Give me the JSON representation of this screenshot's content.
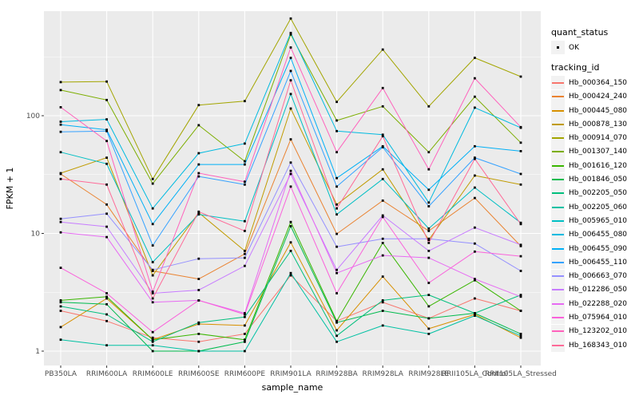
{
  "style": {
    "panel_bg": "#EBEBEB",
    "grid_color": "#FFFFFF",
    "tick_label_color": "#4D4D4D",
    "tick_mark_color": "#333333",
    "point_color": "#000000",
    "legend_key_bg": "#F2F2F2"
  },
  "chart_data": {
    "type": "line",
    "title": "",
    "xlabel": "sample_name",
    "ylabel": "FPKM + 1",
    "yscale": "log10",
    "ylim": [
      1,
      760
    ],
    "yticks": [
      1,
      10,
      100
    ],
    "ytick_labels": [
      "1",
      "10",
      "100"
    ],
    "yminor": [
      3.1623,
      31.623,
      316.23
    ],
    "grid": "major+minor, white on grey panel",
    "legend_position": "right",
    "categories": [
      "PB350LA",
      "RRIM600LA",
      "RRIM600LE",
      "RRIM600SE",
      "RRIM600PE",
      "RRIM901LA",
      "RRIM928BA",
      "RRIM928LA",
      "RRIM928LE",
      "RRII105LA_Control",
      "RRII105LA_Stressed"
    ],
    "legend": {
      "quant_status_title": "quant_status",
      "quant_status_items": [
        {
          "label": "OK",
          "symbol": "black-point"
        }
      ],
      "tracking_id_title": "tracking_id"
    },
    "series": [
      {
        "name": "Hb_000364_150",
        "color": "#F8766D",
        "values": [
          2.2,
          1.8,
          1.3,
          1.2,
          1.4,
          4.4,
          1.8,
          2.6,
          1.9,
          2.8,
          2.2
        ]
      },
      {
        "name": "Hb_000424_240",
        "color": "#EA8331",
        "values": [
          32,
          17.6,
          4.8,
          4.1,
          6.7,
          63,
          9.9,
          19,
          10.5,
          20,
          7.8
        ]
      },
      {
        "name": "Hb_000445_080",
        "color": "#D89000",
        "values": [
          1.6,
          2.8,
          1.25,
          1.7,
          1.65,
          8.4,
          1.5,
          4.3,
          1.55,
          2.05,
          1.3
        ]
      },
      {
        "name": "Hb_000878_130",
        "color": "#C09B00",
        "values": [
          32.5,
          44,
          4.4,
          15,
          7.1,
          115,
          17.6,
          35,
          8.8,
          31,
          26
        ]
      },
      {
        "name": "Hb_000914_070",
        "color": "#A3A500",
        "values": [
          193,
          195,
          29,
          123,
          133,
          670,
          131,
          365,
          120,
          310,
          215
        ]
      },
      {
        "name": "Hb_001307_140",
        "color": "#7CAE00",
        "values": [
          165,
          136,
          26.5,
          83,
          41,
          490,
          91,
          120,
          49,
          145,
          59
        ]
      },
      {
        "name": "Hb_001616_120",
        "color": "#39B600",
        "values": [
          2.7,
          2.9,
          1.25,
          1.4,
          1.25,
          12.5,
          1.8,
          8.3,
          2.4,
          4.0,
          2.2
        ]
      },
      {
        "name": "Hb_001846_050",
        "color": "#00BB4E",
        "values": [
          2.6,
          2.5,
          1.0,
          1.0,
          1.2,
          11.5,
          1.75,
          2.2,
          1.9,
          2.1,
          1.4
        ]
      },
      {
        "name": "Hb_002205_050",
        "color": "#00BF7D",
        "values": [
          2.4,
          2.05,
          1.2,
          1.75,
          1.95,
          7.1,
          1.35,
          2.7,
          3.0,
          2.1,
          3.0
        ]
      },
      {
        "name": "Hb_002205_060",
        "color": "#00C1A3",
        "values": [
          1.25,
          1.12,
          1.12,
          1.0,
          1.0,
          4.6,
          1.2,
          1.65,
          1.4,
          2.0,
          1.35
        ]
      },
      {
        "name": "Hb_005965_010",
        "color": "#00BFC4",
        "values": [
          49,
          39,
          5.7,
          14.5,
          12.7,
          153,
          14.5,
          29,
          11,
          24.5,
          12.3
        ]
      },
      {
        "name": "Hb_006455_080",
        "color": "#00BAE0",
        "values": [
          89,
          93,
          16.3,
          48,
          58,
          505,
          74,
          69,
          18.3,
          117,
          79
        ]
      },
      {
        "name": "Hb_006455_090",
        "color": "#00B0F6",
        "values": [
          84,
          76,
          12,
          38.5,
          38.5,
          310,
          29.5,
          55,
          23.5,
          55,
          50
        ]
      },
      {
        "name": "Hb_006455_110",
        "color": "#35A2FF",
        "values": [
          73,
          74,
          7.9,
          30.5,
          26,
          240,
          25,
          54,
          17,
          44,
          32
        ]
      },
      {
        "name": "Hb_006663_070",
        "color": "#9590FF",
        "values": [
          13.3,
          14.7,
          4.9,
          6.1,
          6.2,
          40,
          7.7,
          9.0,
          9.0,
          8.2,
          4.8
        ]
      },
      {
        "name": "Hb_012286_050",
        "color": "#C77CFF",
        "values": [
          12.5,
          11.4,
          3.1,
          3.3,
          5.3,
          32,
          4.9,
          14.2,
          7.1,
          11.2,
          8.0
        ]
      },
      {
        "name": "Hb_022288_020",
        "color": "#E76BF3",
        "values": [
          10.2,
          9.3,
          2.6,
          2.7,
          2.1,
          34,
          4.6,
          6.5,
          6.2,
          4.1,
          2.9
        ]
      },
      {
        "name": "Hb_075964_010",
        "color": "#FA62DB",
        "values": [
          5.1,
          3.1,
          1.45,
          2.7,
          2.05,
          25,
          3.1,
          13.8,
          3.8,
          7.0,
          6.4
        ]
      },
      {
        "name": "Hb_123202_010",
        "color": "#FF62BC",
        "values": [
          118,
          61,
          3.2,
          32.5,
          27.5,
          380,
          49,
          172,
          35,
          208,
          80
        ]
      },
      {
        "name": "Hb_168343_010",
        "color": "#FF6A98",
        "values": [
          29,
          26,
          2.8,
          15.3,
          10.5,
          200,
          16.3,
          67,
          8.3,
          43,
          12
        ]
      }
    ]
  }
}
